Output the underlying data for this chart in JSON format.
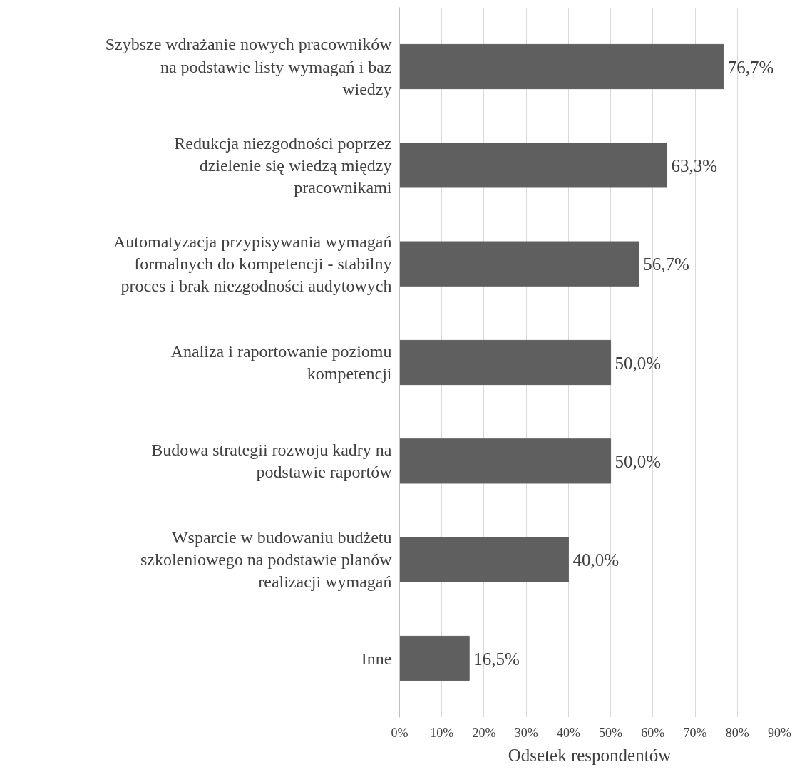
{
  "chart_data": {
    "type": "bar",
    "orientation": "horizontal",
    "xlabel": "Odsetek respondentów",
    "categories": [
      "Szybsze wdrażanie nowych pracowników na podstawie listy wymagań i baz wiedzy",
      "Redukcja niezgodności poprzez dzielenie się wiedzą między pracownikami",
      "Automatyzacja przypisywania wymagań formalnych do kompetencji - stabilny proces i brak niezgodności audytowych",
      "Analiza i raportowanie poziomu kompetencji",
      "Budowa strategii rozwoju kadry na podstawie raportów",
      "Wsparcie w budowaniu budżetu szkoleniowego na podstawie planów realizacji wymagań",
      "Inne"
    ],
    "values": [
      76.7,
      63.3,
      56.7,
      50.0,
      50.0,
      40.0,
      16.5
    ],
    "value_labels": [
      "76,7%",
      "63,3%",
      "56,7%",
      "50,0%",
      "50,0%",
      "40,0%",
      "16,5%"
    ],
    "color": "#5f5f5f",
    "xlim": [
      0,
      90
    ],
    "xticks": [
      {
        "value": 0,
        "label": "0%"
      },
      {
        "value": 10,
        "label": "10%"
      },
      {
        "value": 20,
        "label": "20%"
      },
      {
        "value": 30,
        "label": "30%"
      },
      {
        "value": 40,
        "label": "40%"
      },
      {
        "value": 50,
        "label": "50%"
      },
      {
        "value": 60,
        "label": "60%"
      },
      {
        "value": 70,
        "label": "70%"
      },
      {
        "value": 80,
        "label": "80%"
      },
      {
        "value": 90,
        "label": "90%"
      }
    ],
    "grid": "x"
  }
}
